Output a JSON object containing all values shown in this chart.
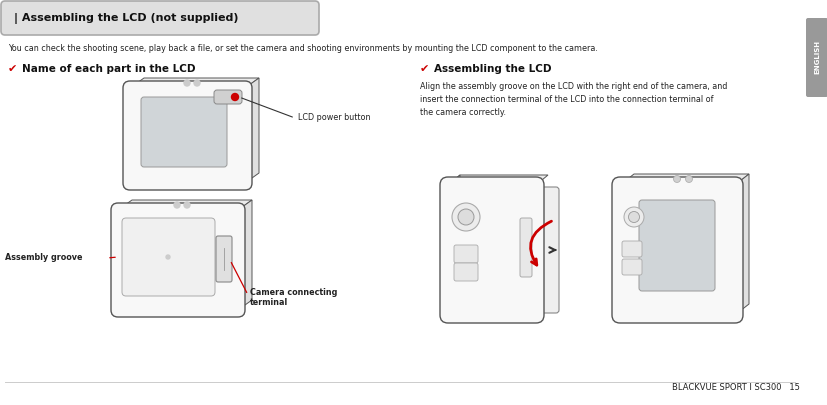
{
  "page_bg": "#ffffff",
  "sidebar_color": "#999999",
  "sidebar_text": "ENGLISH",
  "header_box_text": "| Assembling the LCD (not supplied)",
  "header_box_bg": "#e0e0e0",
  "header_box_border": "#aaaaaa",
  "intro_text": "You can check the shooting scene, play back a file, or set the camera and shooting environments by mounting the LCD component to the camera.",
  "section1_title": "Name of each part in the LCD",
  "section2_title": "Assembling the LCD",
  "check_color": "#cc0000",
  "section2_body": "Align the assembly groove on the LCD with the right end of the camera, and\ninsert the connection terminal of the LCD into the connection terminal of\nthe camera correctly.",
  "label_lcd_power": "LCD power button",
  "label_assembly": "Assembly groove",
  "label_camera_conn": "Camera connecting\nterminal",
  "footer_text": "BLACKVUE SPORT I SC300   15",
  "red_color": "#cc0000",
  "dark_color": "#333333",
  "device_edge": "#555555",
  "device_face": "#f8f8f8",
  "device_side": "#e0e0e0",
  "device_top": "#ebebeb",
  "screen_color": "#d0d5d8",
  "screen_edge": "#999999"
}
